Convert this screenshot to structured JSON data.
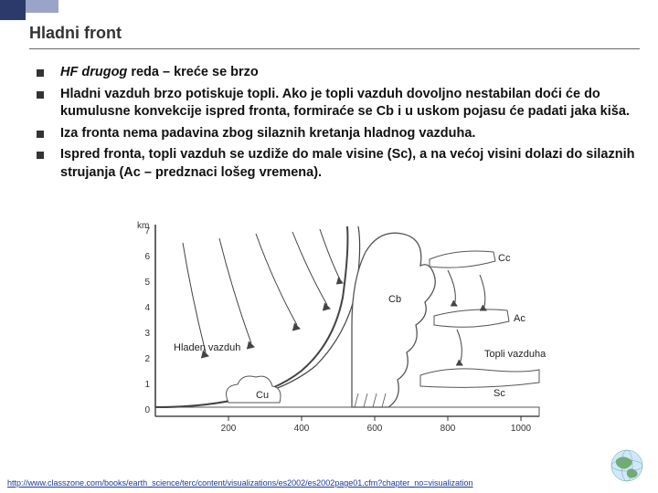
{
  "title": "Hladni front",
  "bullets": [
    {
      "html": "<em>HF drugog</em> reda – kreće se brzo"
    },
    {
      "html": "Hladni vazduh brzo potiskuje topli. Ako je topli vazduh dovoljno nestabilan doći će do kumulusne konvekcije ispred fronta, formiraće se Cb i u uskom pojasu će padati jaka kiša."
    },
    {
      "html": "Iza fronta nema padavina zbog silaznih kretanja hladnog vazduha."
    },
    {
      "html": "Ispred fronta, topli vazduh se uzdiže do male visine (Sc), a na većoj visini dolazi do silaznih strujanja (Ac – predznaci lošeg vremena)."
    }
  ],
  "diagram": {
    "y_label": "km",
    "y_ticks": [
      "7",
      "6",
      "5",
      "4",
      "3",
      "2",
      "1",
      "0"
    ],
    "x_ticks": [
      "200",
      "400",
      "600",
      "800",
      "1000"
    ],
    "labels": {
      "cold_air": "Hladen vazduh",
      "warm_air": "Topli vazduha",
      "cu": "Cu",
      "cb": "Cb",
      "cc": "Cc",
      "ac": "Ac",
      "sc": "Sc"
    },
    "colors": {
      "axis": "#333333",
      "line": "#444444",
      "ground": "#555555",
      "cloud_fill": "#ffffff",
      "cloud_stroke": "#555555"
    }
  },
  "footer_url": "http://www.classzone.com/books/earth_science/terc/content/visualizations/es2002/es2002page01.cfm?chapter_no=visualization"
}
